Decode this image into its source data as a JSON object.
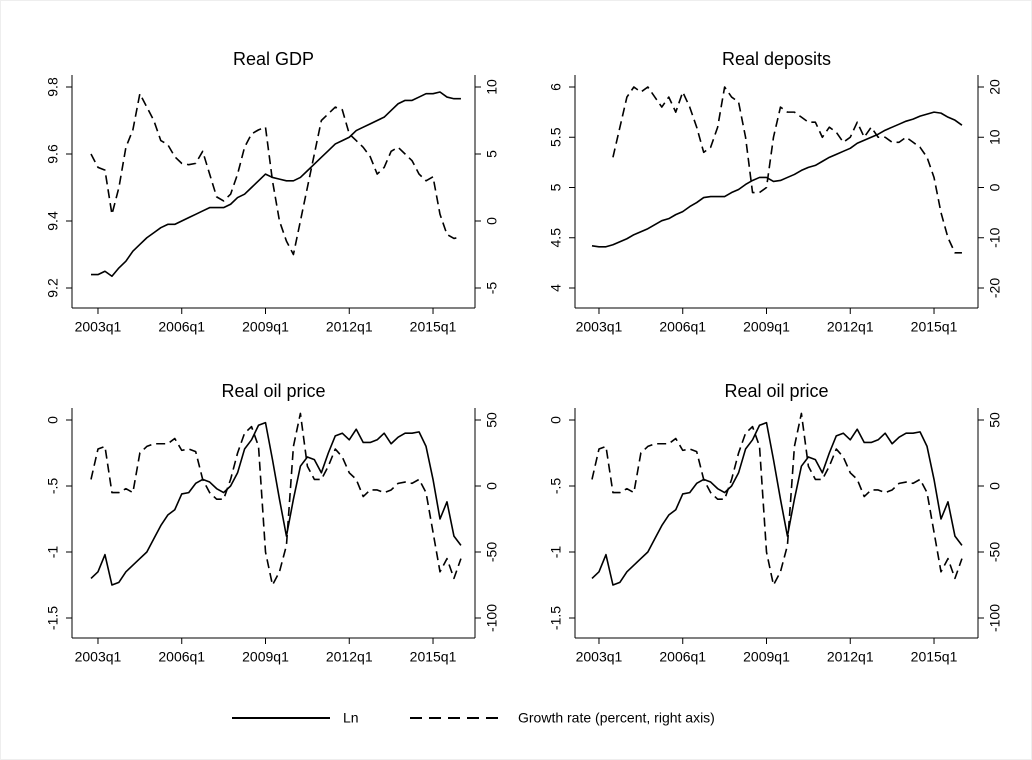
{
  "chart_data": [
    {
      "type": "line",
      "title": "Real GDP",
      "categories": [
        null,
        "2003q1",
        null,
        null,
        null,
        null,
        null,
        null,
        null,
        null,
        null,
        null,
        null,
        "2006q1",
        null,
        null,
        null,
        null,
        null,
        null,
        null,
        null,
        null,
        null,
        null,
        "2009q1",
        null,
        null,
        null,
        null,
        null,
        null,
        null,
        null,
        null,
        null,
        null,
        "2012q1",
        null,
        null,
        null,
        null,
        null,
        null,
        null,
        null,
        null,
        null,
        null,
        "2015q1",
        null,
        null,
        null,
        null
      ],
      "series": [
        {
          "name": "Ln",
          "color": "#000000",
          "style": "solid",
          "values": [
            9.24,
            9.24,
            9.25,
            9.235,
            9.26,
            9.28,
            9.31,
            9.33,
            9.35,
            9.365,
            9.38,
            9.39,
            9.39,
            9.4,
            9.41,
            9.42,
            9.43,
            9.44,
            9.44,
            9.44,
            9.45,
            9.47,
            9.48,
            9.5,
            9.52,
            9.54,
            9.53,
            9.525,
            9.52,
            9.52,
            9.53,
            9.55,
            9.57,
            9.59,
            9.61,
            9.63,
            9.64,
            9.65,
            9.67,
            9.68,
            9.69,
            9.7,
            9.71,
            9.73,
            9.75,
            9.76,
            9.76,
            9.77,
            9.78,
            9.78,
            9.785,
            9.77,
            9.765,
            9.765
          ]
        },
        {
          "name": "Growth rate (percent, right axis)",
          "color": "#000000",
          "style": "dashed",
          "axis": "y2",
          "values": [
            5,
            4,
            3.8,
            0.5,
            2.5,
            5.5,
            6.8,
            9.5,
            8.5,
            7.5,
            6,
            5.7,
            4.8,
            4.3,
            4.2,
            4.3,
            5.2,
            3.5,
            1.8,
            1.5,
            2,
            3.5,
            5.5,
            6.5,
            6.8,
            7,
            3,
            0,
            -1.5,
            -2.5,
            0,
            2.5,
            5,
            7.5,
            8,
            8.5,
            8.3,
            6.5,
            6,
            5.5,
            4.8,
            3.5,
            4,
            5.2,
            5.5,
            5,
            4.5,
            3.5,
            3,
            3.3,
            0.5,
            -1,
            -1.3,
            -1.2
          ]
        }
      ],
      "ylim": [
        9.2,
        9.8
      ],
      "yticks": [
        9.2,
        9.4,
        9.6,
        9.8
      ],
      "y2lim": [
        -5,
        10
      ],
      "y2ticks": [
        -5,
        0,
        5,
        10
      ]
    },
    {
      "type": "line",
      "title": "Real deposits",
      "categories": [
        null,
        "2003q1",
        null,
        null,
        null,
        null,
        null,
        null,
        null,
        null,
        null,
        null,
        null,
        "2006q1",
        null,
        null,
        null,
        null,
        null,
        null,
        null,
        null,
        null,
        null,
        null,
        "2009q1",
        null,
        null,
        null,
        null,
        null,
        null,
        null,
        null,
        null,
        null,
        null,
        "2012q1",
        null,
        null,
        null,
        null,
        null,
        null,
        null,
        null,
        null,
        null,
        null,
        "2015q1",
        null,
        null,
        null,
        null
      ],
      "series": [
        {
          "name": "Ln",
          "color": "#000000",
          "style": "solid",
          "values": [
            4.42,
            4.41,
            4.41,
            4.43,
            4.46,
            4.49,
            4.53,
            4.56,
            4.59,
            4.63,
            4.67,
            4.69,
            4.73,
            4.76,
            4.81,
            4.85,
            4.9,
            4.91,
            4.91,
            4.91,
            4.95,
            4.98,
            5.03,
            5.07,
            5.1,
            5.1,
            5.06,
            5.07,
            5.1,
            5.13,
            5.17,
            5.2,
            5.22,
            5.26,
            5.3,
            5.33,
            5.36,
            5.39,
            5.44,
            5.47,
            5.5,
            5.53,
            5.57,
            5.6,
            5.63,
            5.66,
            5.68,
            5.71,
            5.73,
            5.75,
            5.74,
            5.7,
            5.67,
            5.62
          ]
        },
        {
          "name": "Growth rate (percent, right axis)",
          "color": "#000000",
          "style": "dashed",
          "axis": "y2",
          "values": [
            null,
            null,
            null,
            6,
            12,
            18,
            20,
            19,
            20,
            18,
            16,
            18,
            15,
            19,
            16,
            12,
            7,
            8,
            12,
            20,
            18,
            17,
            10,
            -1,
            -1,
            0,
            10,
            16,
            15,
            15,
            14,
            13,
            13,
            10,
            12,
            11,
            9,
            10,
            13,
            10,
            12,
            10,
            10,
            9,
            9,
            10,
            9,
            8,
            6,
            2,
            -5,
            -10,
            -13,
            -13
          ]
        }
      ],
      "ylim": [
        4,
        6
      ],
      "yticks": [
        4,
        4.5,
        5,
        5.5,
        6
      ],
      "y2lim": [
        -20,
        20
      ],
      "y2ticks": [
        -20,
        -10,
        0,
        10,
        20
      ]
    },
    {
      "type": "line",
      "title": "Real oil price",
      "categories": [
        null,
        "2003q1",
        null,
        null,
        null,
        null,
        null,
        null,
        null,
        null,
        null,
        null,
        null,
        "2006q1",
        null,
        null,
        null,
        null,
        null,
        null,
        null,
        null,
        null,
        null,
        null,
        "2009q1",
        null,
        null,
        null,
        null,
        null,
        null,
        null,
        null,
        null,
        null,
        null,
        "2012q1",
        null,
        null,
        null,
        null,
        null,
        null,
        null,
        null,
        null,
        null,
        null,
        "2015q1",
        null,
        null,
        null,
        null
      ],
      "series": [
        {
          "name": "Ln",
          "color": "#000000",
          "style": "solid",
          "values": [
            -1.2,
            -1.15,
            -1.02,
            -1.25,
            -1.23,
            -1.15,
            -1.1,
            -1.05,
            -1.0,
            -0.9,
            -0.8,
            -0.72,
            -0.68,
            -0.56,
            -0.55,
            -0.48,
            -0.45,
            -0.47,
            -0.52,
            -0.55,
            -0.5,
            -0.4,
            -0.22,
            -0.15,
            -0.04,
            -0.02,
            -0.3,
            -0.6,
            -0.88,
            -0.6,
            -0.35,
            -0.28,
            -0.3,
            -0.4,
            -0.25,
            -0.12,
            -0.1,
            -0.15,
            -0.07,
            -0.17,
            -0.17,
            -0.15,
            -0.1,
            -0.18,
            -0.13,
            -0.1,
            -0.1,
            -0.09,
            -0.2,
            -0.45,
            -0.75,
            -0.62,
            -0.88,
            -0.95
          ]
        },
        {
          "name": "Growth rate (percent, right axis)",
          "color": "#000000",
          "style": "dashed",
          "axis": "y2",
          "values": [
            5,
            28,
            30,
            -5,
            -5,
            -2,
            -5,
            25,
            30,
            32,
            32,
            32,
            36,
            27,
            28,
            26,
            5,
            -5,
            -10,
            -10,
            5,
            25,
            40,
            45,
            30,
            -50,
            -75,
            -65,
            -45,
            30,
            55,
            15,
            5,
            5,
            15,
            28,
            22,
            10,
            5,
            -8,
            -3,
            -3,
            -5,
            -3,
            2,
            3,
            2,
            5,
            -5,
            -35,
            -65,
            -55,
            -70,
            -55
          ]
        }
      ],
      "ylim": [
        -1.5,
        0
      ],
      "yticks": [
        -1.5,
        -1,
        {
          "value": -0.5,
          "label": "-.5"
        },
        0
      ],
      "y2lim": [
        -100,
        50
      ],
      "y2ticks": [
        -100,
        -50,
        0,
        50
      ]
    },
    {
      "type": "line",
      "title": "Real oil price",
      "categories": [
        null,
        "2003q1",
        null,
        null,
        null,
        null,
        null,
        null,
        null,
        null,
        null,
        null,
        null,
        "2006q1",
        null,
        null,
        null,
        null,
        null,
        null,
        null,
        null,
        null,
        null,
        null,
        "2009q1",
        null,
        null,
        null,
        null,
        null,
        null,
        null,
        null,
        null,
        null,
        null,
        "2012q1",
        null,
        null,
        null,
        null,
        null,
        null,
        null,
        null,
        null,
        null,
        null,
        "2015q1",
        null,
        null,
        null,
        null
      ],
      "series": [
        {
          "name": "Ln",
          "color": "#000000",
          "style": "solid",
          "values": [
            -1.2,
            -1.15,
            -1.02,
            -1.25,
            -1.23,
            -1.15,
            -1.1,
            -1.05,
            -1.0,
            -0.9,
            -0.8,
            -0.72,
            -0.68,
            -0.56,
            -0.55,
            -0.48,
            -0.45,
            -0.47,
            -0.52,
            -0.55,
            -0.5,
            -0.4,
            -0.22,
            -0.15,
            -0.04,
            -0.02,
            -0.3,
            -0.6,
            -0.88,
            -0.6,
            -0.35,
            -0.28,
            -0.3,
            -0.4,
            -0.25,
            -0.12,
            -0.1,
            -0.15,
            -0.07,
            -0.17,
            -0.17,
            -0.15,
            -0.1,
            -0.18,
            -0.13,
            -0.1,
            -0.1,
            -0.09,
            -0.2,
            -0.45,
            -0.75,
            -0.62,
            -0.88,
            -0.95
          ]
        },
        {
          "name": "Growth rate (percent, right axis)",
          "color": "#000000",
          "style": "dashed",
          "axis": "y2",
          "values": [
            5,
            28,
            30,
            -5,
            -5,
            -2,
            -5,
            25,
            30,
            32,
            32,
            32,
            36,
            27,
            28,
            26,
            5,
            -5,
            -10,
            -10,
            5,
            25,
            40,
            45,
            30,
            -50,
            -75,
            -65,
            -45,
            30,
            55,
            15,
            5,
            5,
            15,
            28,
            22,
            10,
            5,
            -8,
            -3,
            -3,
            -5,
            -3,
            2,
            3,
            2,
            5,
            -5,
            -35,
            -65,
            -55,
            -70,
            -55
          ]
        }
      ],
      "ylim": [
        -1.5,
        0
      ],
      "yticks": [
        -1.5,
        -1,
        {
          "value": -0.5,
          "label": "-.5"
        },
        0
      ],
      "y2lim": [
        -100,
        50
      ],
      "y2ticks": [
        -100,
        -50,
        0,
        50
      ]
    }
  ]
}
